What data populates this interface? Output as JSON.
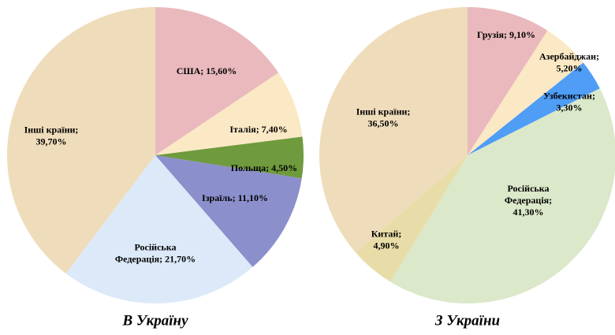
{
  "chart_data": [
    {
      "type": "pie",
      "title": "В Україну",
      "value_labels": [
        "США; 15,60%",
        "Італія; 7,40%",
        "Польща; 4,50%",
        "Ізраїль; 11,10%",
        "Російська\nФедерація; 21,70%",
        "Інші країни;\n39,70%"
      ],
      "values": [
        15.6,
        7.4,
        4.5,
        11.1,
        21.7,
        39.7
      ],
      "colors": [
        "#e9b9bd",
        "#fbe8c4",
        "#6f9a3e",
        "#8b8fcb",
        "#dce9f8",
        "#efdcba"
      ]
    },
    {
      "type": "pie",
      "title": "З України",
      "value_labels": [
        "Грузія; 9,10%",
        "Азербайджан;\n5,20%",
        "Узбекистан;\n3,30%",
        "Російська\nФедерація;\n41,30%",
        "Китай;\n4,90%",
        "Інші країни;\n36,50%"
      ],
      "values": [
        9.1,
        5.2,
        3.3,
        41.3,
        4.9,
        36.5
      ],
      "colors": [
        "#e9b9bd",
        "#fbe8c4",
        "#4f9df5",
        "#dbe8c9",
        "#e8dda8",
        "#efdcba"
      ]
    }
  ]
}
